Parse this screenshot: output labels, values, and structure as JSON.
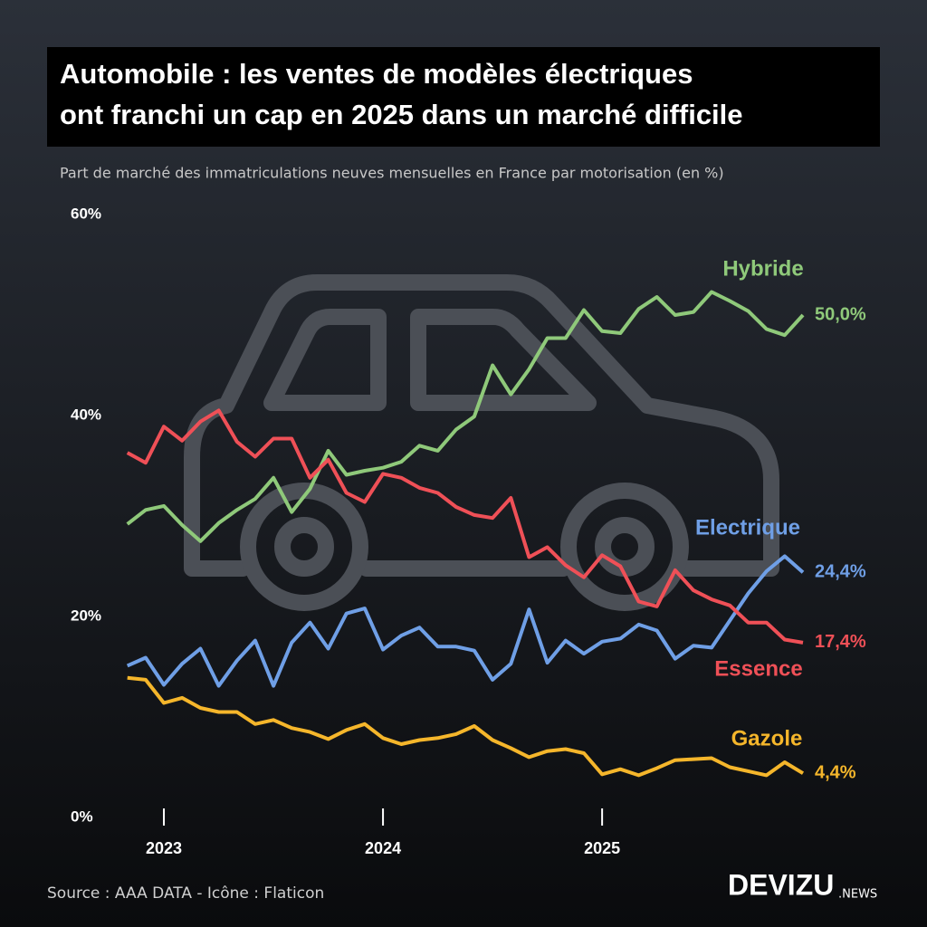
{
  "header": {
    "title": [
      "Automobile : les ventes de modèles électriques",
      "ont franchi un cap en 2025 dans un marché difficile"
    ]
  },
  "chart_data": {
    "type": "line",
    "subtitle": "Part de marché des immatriculations neuves mensuelles en France par motorisation (en %)",
    "categories": [
      null,
      null,
      "2023",
      null,
      null,
      null,
      null,
      null,
      null,
      null,
      null,
      null,
      null,
      null,
      "2024",
      null,
      null,
      null,
      null,
      null,
      null,
      null,
      null,
      null,
      null,
      null,
      "2025",
      null,
      null,
      null,
      null,
      null,
      null,
      null,
      null,
      null,
      null,
      null
    ],
    "ylim": [
      0,
      60
    ],
    "yticks": [
      {
        "value": 0,
        "label": "0%"
      },
      {
        "value": 20,
        "label": "20%"
      },
      {
        "value": 40,
        "label": "40%"
      },
      {
        "value": 60,
        "label": "60%"
      }
    ],
    "grid": false,
    "series": [
      {
        "name": "Hybride",
        "color": "#8fc97a",
        "values": [
          29.2,
          30.6,
          31.0,
          29.1,
          27.5,
          29.3,
          30.6,
          31.7,
          33.8,
          30.4,
          32.7,
          36.5,
          34.1,
          34.5,
          34.8,
          35.4,
          37.0,
          36.5,
          38.6,
          39.9,
          45.0,
          42.1,
          44.6,
          47.7,
          47.7,
          50.5,
          48.4,
          48.2,
          50.6,
          51.8,
          50.0,
          50.3,
          52.3,
          51.4,
          50.4,
          48.6,
          48.0,
          50.0
        ],
        "value_labels": [
          null,
          null,
          null,
          null,
          null,
          null,
          null,
          null,
          null,
          null,
          null,
          null,
          null,
          null,
          null,
          null,
          null,
          null,
          null,
          null,
          null,
          null,
          null,
          null,
          null,
          null,
          null,
          null,
          null,
          null,
          null,
          null,
          null,
          null,
          null,
          null,
          null,
          "50,0%"
        ]
      },
      {
        "name": "Electrique",
        "color": "#6f9fe6",
        "values": [
          15.1,
          15.9,
          13.2,
          15.3,
          16.8,
          13.1,
          15.6,
          17.6,
          13.1,
          17.4,
          19.4,
          16.8,
          20.3,
          20.8,
          16.7,
          18.1,
          18.9,
          17.0,
          17.0,
          16.6,
          13.7,
          15.3,
          20.7,
          15.4,
          17.6,
          16.3,
          17.5,
          17.8,
          19.2,
          18.6,
          15.8,
          17.1,
          16.9,
          19.6,
          22.3,
          24.5,
          26.0,
          24.4
        ],
        "value_labels": [
          null,
          null,
          null,
          null,
          null,
          null,
          null,
          null,
          null,
          null,
          null,
          null,
          null,
          null,
          null,
          null,
          null,
          null,
          null,
          null,
          null,
          null,
          null,
          null,
          null,
          null,
          null,
          null,
          null,
          null,
          null,
          null,
          null,
          null,
          null,
          null,
          null,
          "24,4%"
        ]
      },
      {
        "name": "Essence",
        "color": "#ef5057",
        "values": [
          36.3,
          35.3,
          38.9,
          37.5,
          39.4,
          40.5,
          37.4,
          35.9,
          37.7,
          37.7,
          33.8,
          35.6,
          32.3,
          31.4,
          34.2,
          33.8,
          32.8,
          32.3,
          30.9,
          30.1,
          29.8,
          31.8,
          25.9,
          26.9,
          25.1,
          23.9,
          26.1,
          25.0,
          21.5,
          21.0,
          24.6,
          22.6,
          21.7,
          21.1,
          19.4,
          19.4,
          17.7,
          17.4
        ],
        "value_labels": [
          null,
          null,
          null,
          null,
          null,
          null,
          null,
          null,
          null,
          null,
          null,
          null,
          null,
          null,
          null,
          null,
          null,
          null,
          null,
          null,
          null,
          null,
          null,
          null,
          null,
          null,
          null,
          null,
          null,
          null,
          null,
          null,
          null,
          null,
          null,
          null,
          null,
          "17,4%"
        ]
      },
      {
        "name": "Gazole",
        "color": "#f5b62b",
        "values": [
          13.9,
          13.7,
          11.4,
          11.9,
          10.9,
          10.5,
          10.5,
          9.3,
          9.7,
          8.9,
          8.5,
          7.8,
          8.7,
          9.3,
          7.9,
          7.3,
          7.7,
          7.9,
          8.3,
          9.1,
          7.7,
          6.9,
          6.0,
          6.6,
          6.8,
          6.4,
          4.3,
          4.8,
          4.2,
          4.9,
          5.7,
          5.8,
          5.9,
          5.0,
          4.6,
          4.2,
          5.5,
          4.4
        ],
        "value_labels": [
          null,
          null,
          null,
          null,
          null,
          null,
          null,
          null,
          null,
          null,
          null,
          null,
          null,
          null,
          null,
          null,
          null,
          null,
          null,
          null,
          null,
          null,
          null,
          null,
          null,
          null,
          null,
          null,
          null,
          null,
          null,
          null,
          null,
          null,
          null,
          null,
          null,
          "4,4%"
        ]
      }
    ]
  },
  "footer": {
    "source": "Source : AAA DATA - Icône : Flaticon",
    "brand": "DEVIZU",
    "brand_suffix": ".NEWS"
  }
}
